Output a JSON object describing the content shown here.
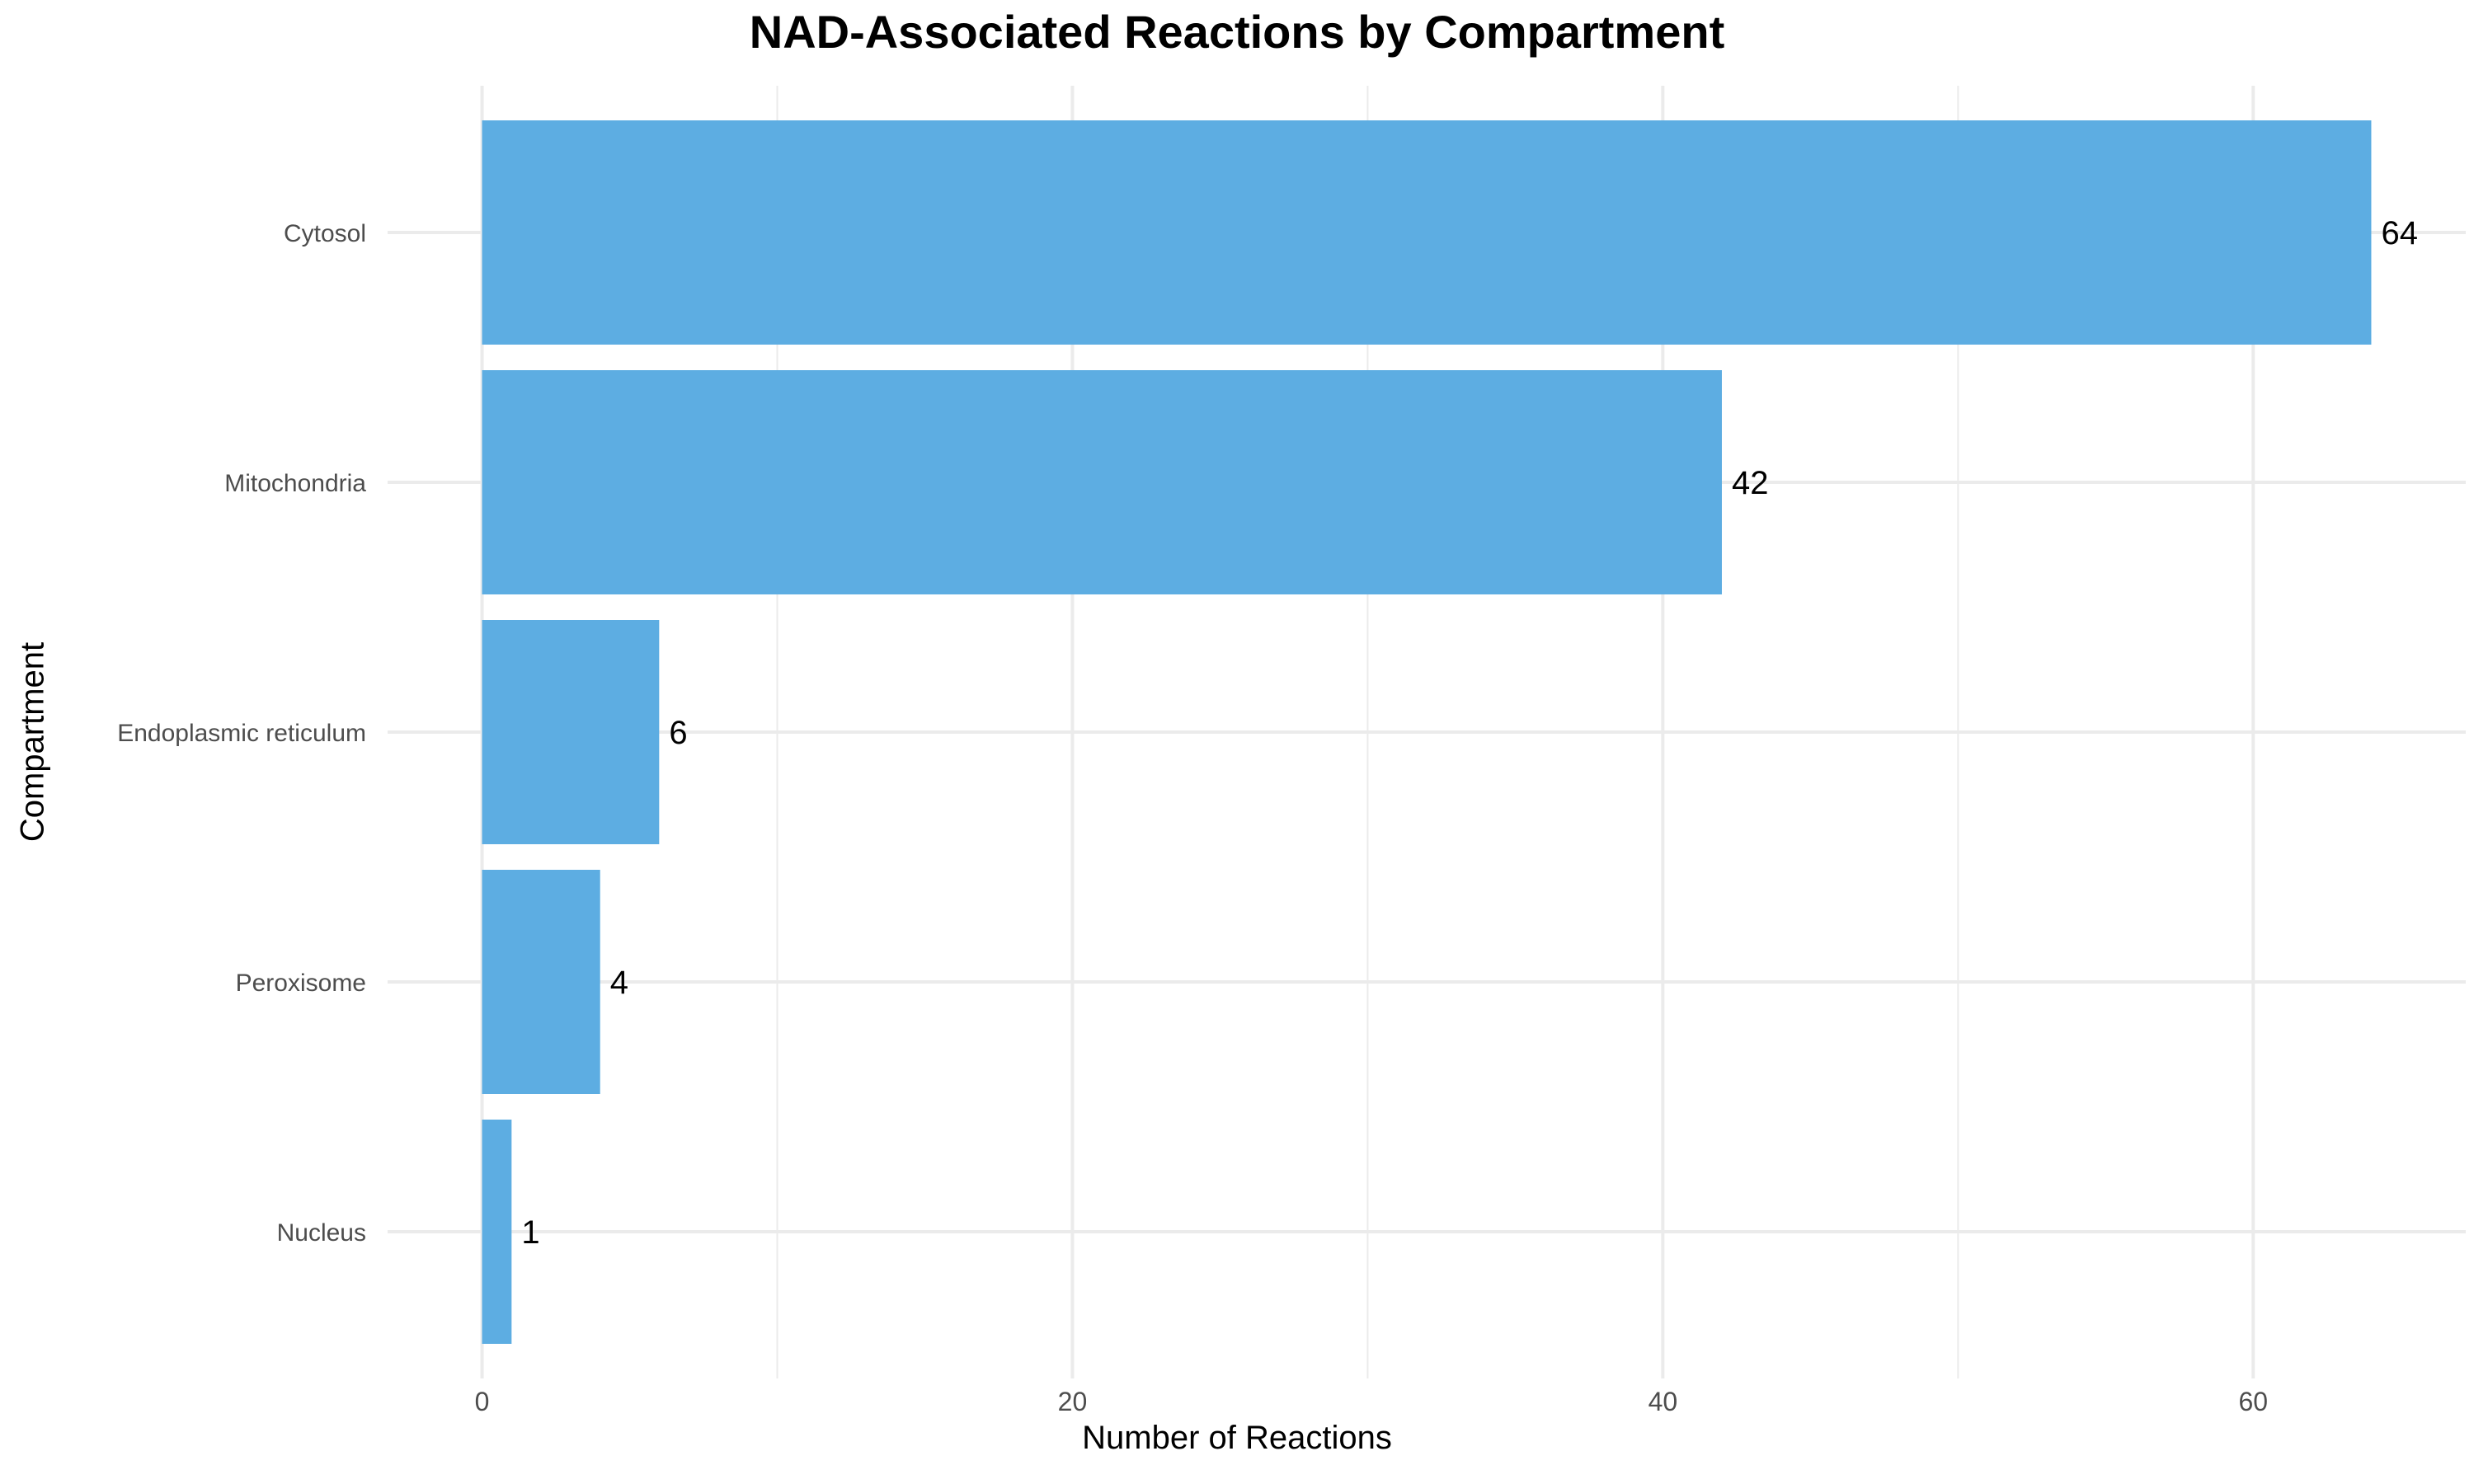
{
  "chart_data": {
    "type": "bar",
    "orientation": "horizontal",
    "title": "NAD-Associated Reactions by Compartment",
    "xlabel": "Number of Reactions",
    "ylabel": "Compartment",
    "categories": [
      "Cytosol",
      "Mitochondria",
      "Endoplasmic reticulum",
      "Peroxisome",
      "Nucleus"
    ],
    "values": [
      64,
      42,
      6,
      4,
      1
    ],
    "data_labels": [
      "64",
      "42",
      "6",
      "4",
      "1"
    ],
    "x_ticks": [
      0,
      20,
      40,
      60
    ],
    "x_tick_labels": [
      "0",
      "20",
      "40",
      "60"
    ],
    "xlim": [
      -3.2,
      67.2
    ],
    "grid": true,
    "legend": "none",
    "colors": {
      "bar": "#5dade2",
      "grid": "#ebebeb",
      "tick_text": "#4d4d4d",
      "label_text": "#000000"
    }
  }
}
